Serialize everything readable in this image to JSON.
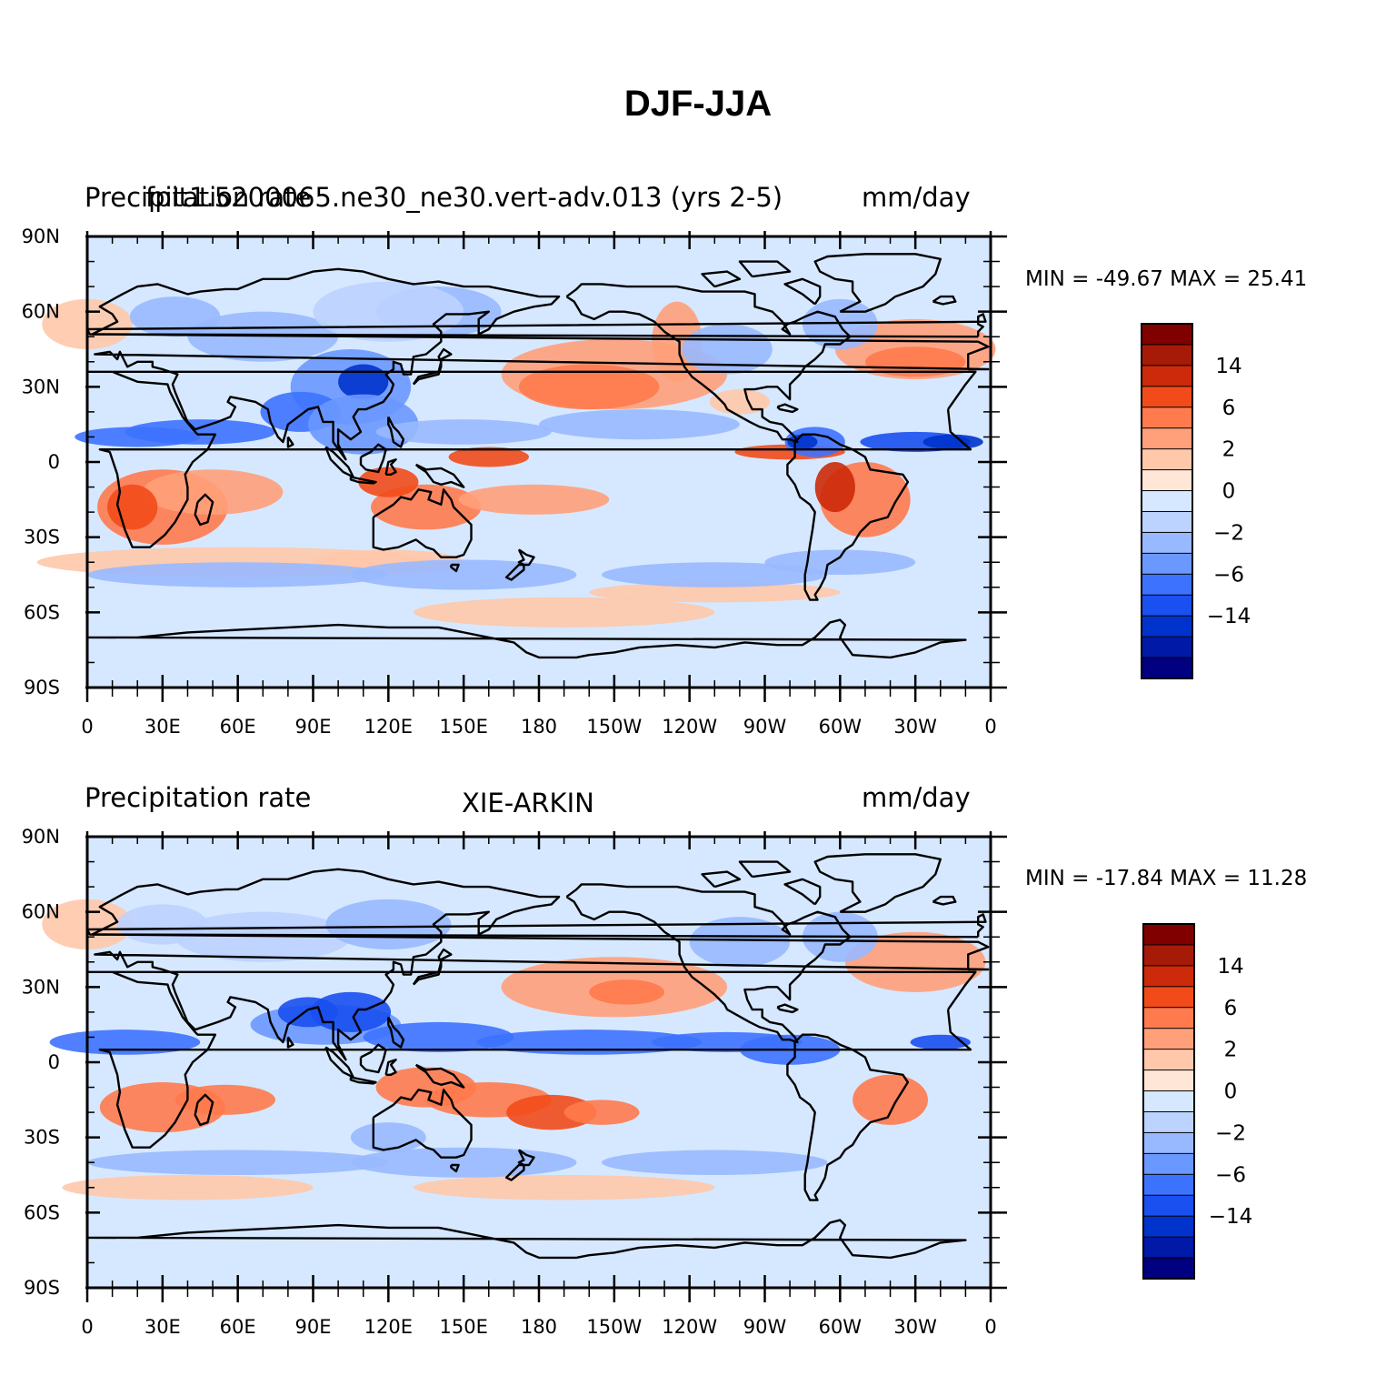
{
  "title": "DJF-JJA",
  "colorbar": {
    "colors": [
      "#000080",
      "#0019a6",
      "#0033cc",
      "#1a4ff0",
      "#3d72ff",
      "#6a98ff",
      "#98b9ff",
      "#bcd2ff",
      "#d6e8ff",
      "#ffe6d6",
      "#ffc8aa",
      "#ffa07a",
      "#ff7a4d",
      "#f24b1a",
      "#cc2a0a",
      "#a61a08",
      "#800000"
    ],
    "labels": [
      "-14",
      "-6",
      "-2",
      "0",
      "2",
      "6",
      "14"
    ]
  },
  "panels": [
    {
      "left_title": "Precipitation rate",
      "center_title": "fpit1.5200065.ne30_ne30.vert-adv.013 (yrs 2-5)",
      "right_title": "mm/day",
      "minmax": "MIN = -49.67 MAX =  25.41"
    },
    {
      "left_title": "Precipitation rate",
      "center_title": "XIE-ARKIN",
      "right_title": "mm/day",
      "minmax": "MIN = -17.84 MAX =  11.28"
    }
  ],
  "axes": {
    "lat_labels": [
      "90N",
      "60N",
      "30N",
      "0",
      "30S",
      "60S",
      "90S"
    ],
    "lon_labels": [
      "0",
      "30E",
      "60E",
      "90E",
      "120E",
      "150E",
      "180",
      "150W",
      "120W",
      "90W",
      "60W",
      "30W",
      "0"
    ]
  }
}
